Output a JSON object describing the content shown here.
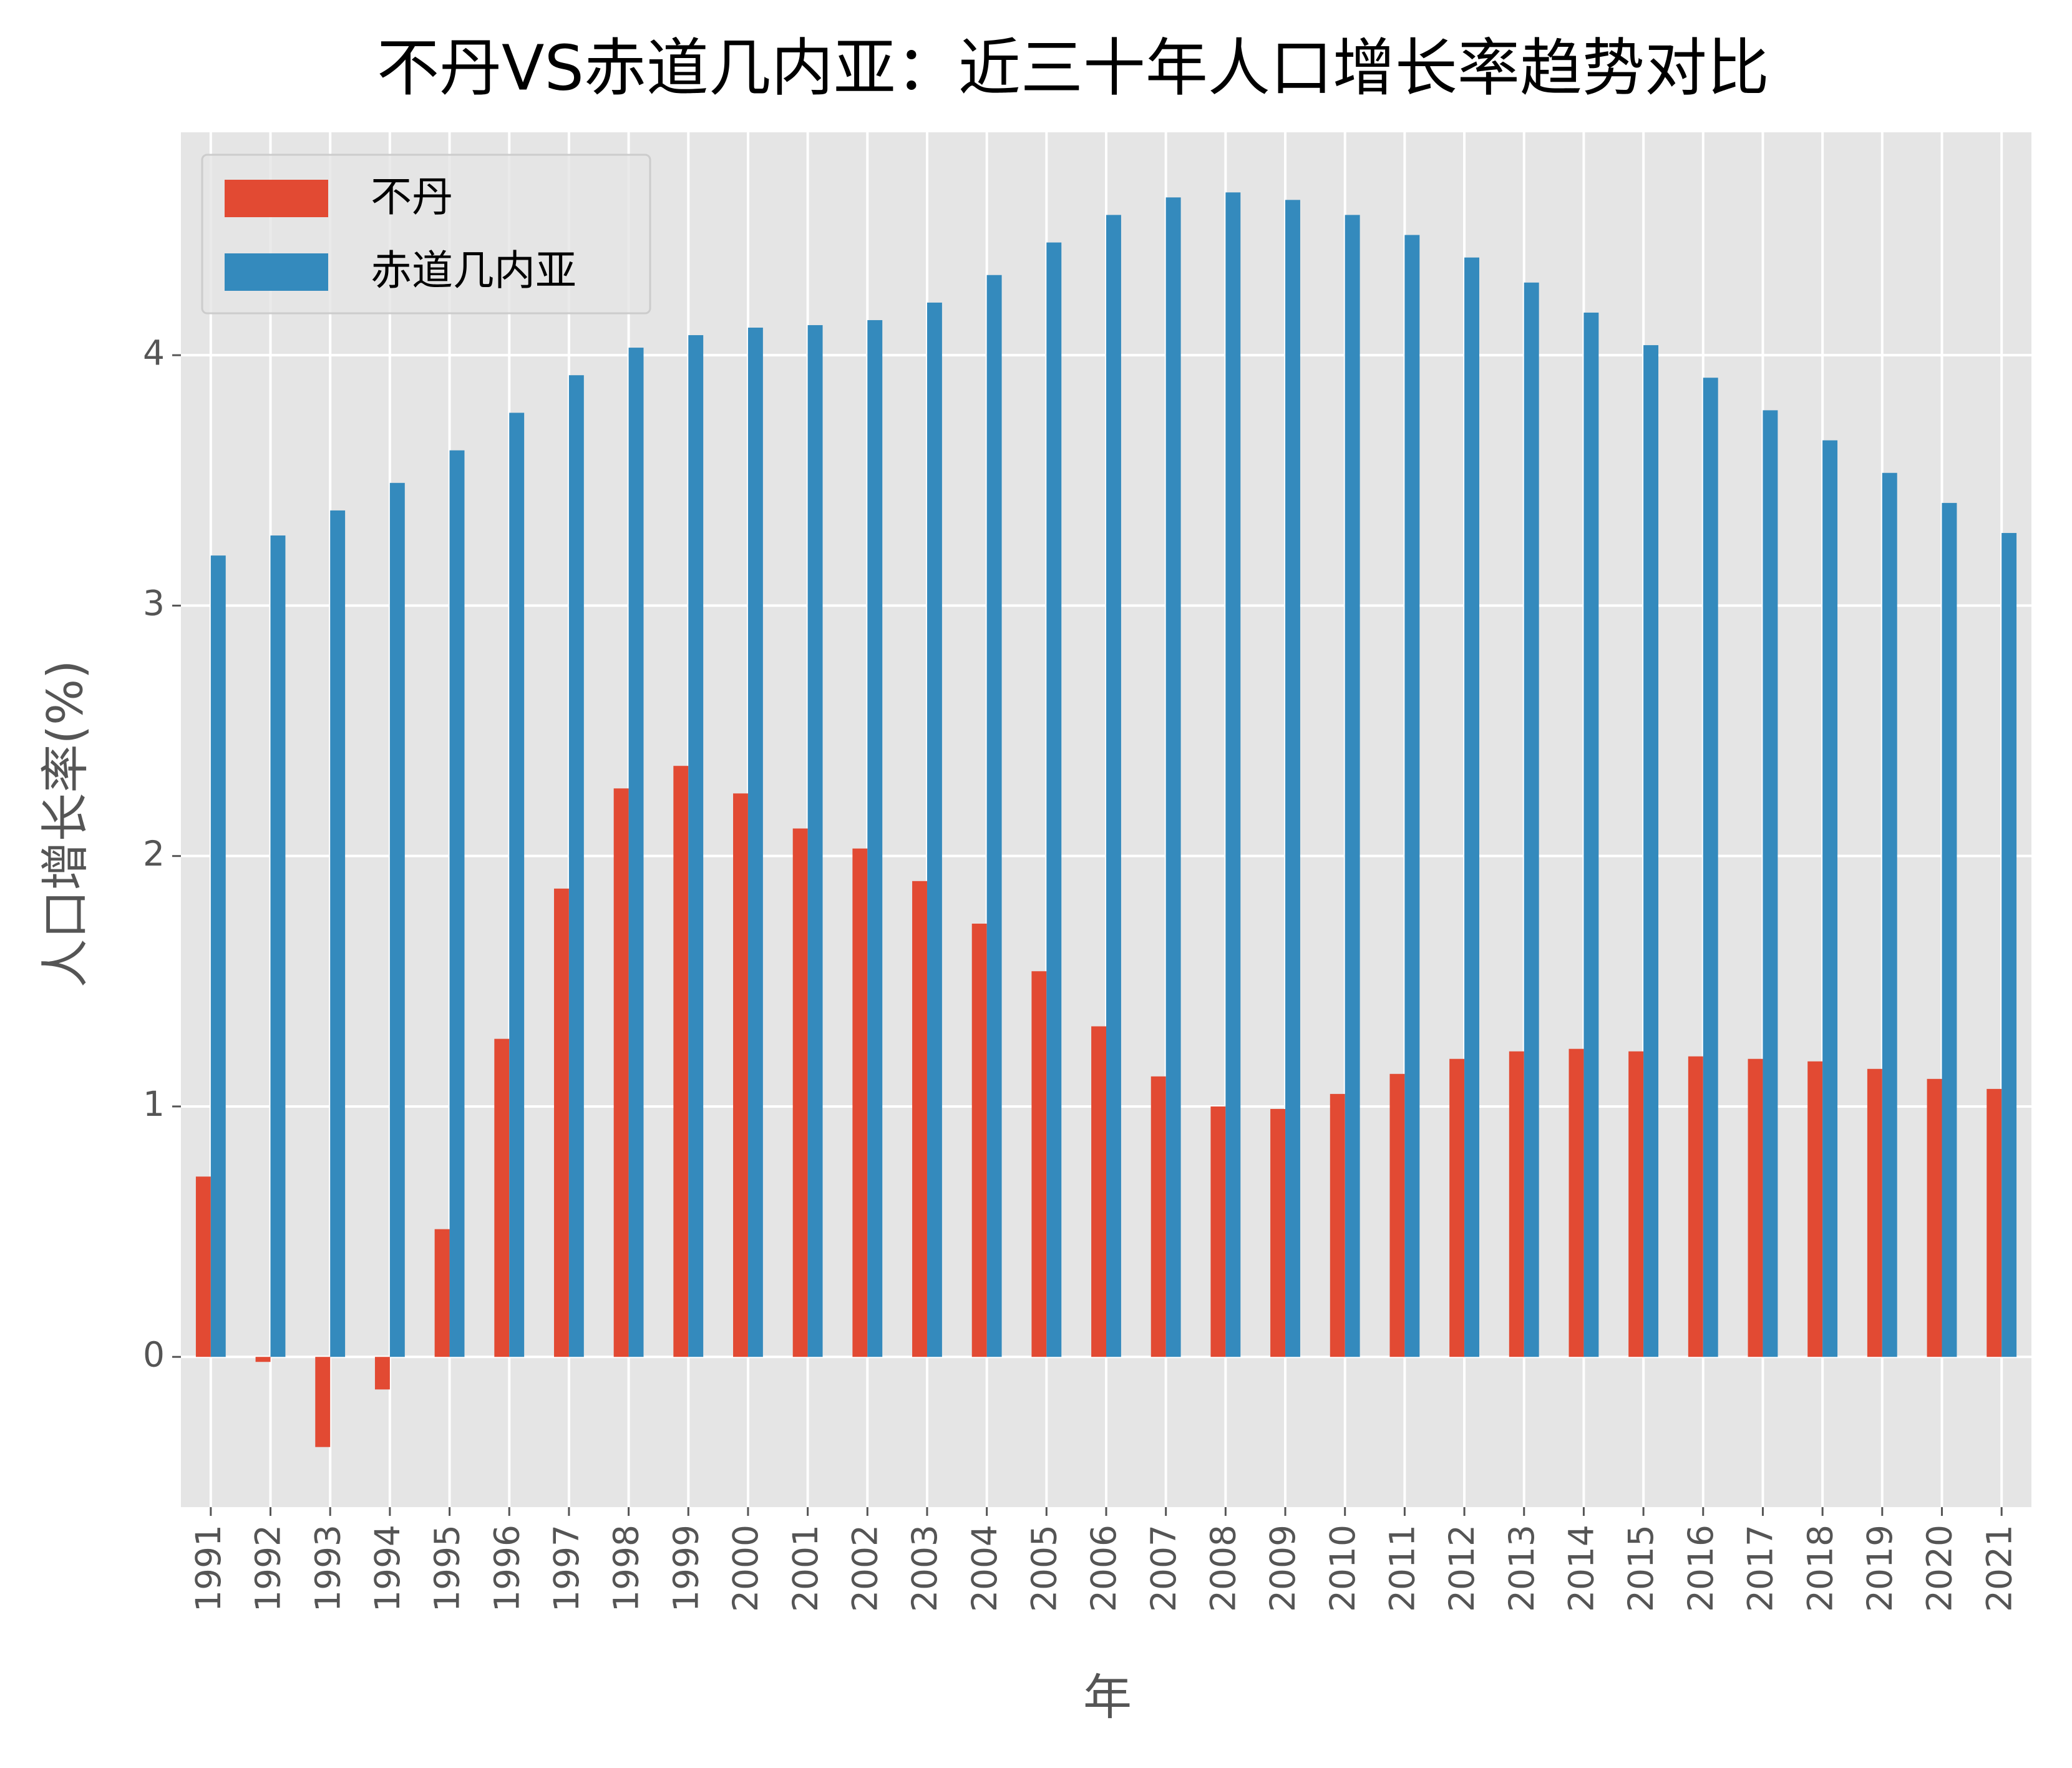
{
  "chart_data": {
    "type": "bar",
    "title": "不丹VS赤道几内亚：近三十年人口增长率趋势对比",
    "xlabel": "年",
    "ylabel": "人口增长率(%)",
    "categories": [
      "1991",
      "1992",
      "1993",
      "1994",
      "1995",
      "1996",
      "1997",
      "1998",
      "1999",
      "2000",
      "2001",
      "2002",
      "2003",
      "2004",
      "2005",
      "2006",
      "2007",
      "2008",
      "2009",
      "2010",
      "2011",
      "2012",
      "2013",
      "2014",
      "2015",
      "2016",
      "2017",
      "2018",
      "2019",
      "2020",
      "2021"
    ],
    "series": [
      {
        "name": "不丹",
        "color": "#e24a33",
        "values": [
          0.72,
          -0.02,
          -0.36,
          -0.13,
          0.51,
          1.27,
          1.87,
          2.27,
          2.36,
          2.25,
          2.11,
          2.03,
          1.9,
          1.73,
          1.54,
          1.32,
          1.12,
          1.0,
          0.99,
          1.05,
          1.13,
          1.19,
          1.22,
          1.23,
          1.22,
          1.2,
          1.19,
          1.18,
          1.15,
          1.11,
          1.07
        ]
      },
      {
        "name": "赤道几内亚",
        "color": "#348abd",
        "values": [
          3.2,
          3.28,
          3.38,
          3.49,
          3.62,
          3.77,
          3.92,
          4.03,
          4.08,
          4.11,
          4.12,
          4.14,
          4.21,
          4.32,
          4.45,
          4.56,
          4.63,
          4.65,
          4.62,
          4.56,
          4.48,
          4.39,
          4.29,
          4.17,
          4.04,
          3.91,
          3.78,
          3.66,
          3.53,
          3.41,
          3.29
        ]
      }
    ],
    "ylim": [
      -0.6,
      4.89
    ],
    "yticks": [
      0,
      1,
      2,
      3,
      4
    ],
    "grid": true,
    "legend": "upper left"
  }
}
